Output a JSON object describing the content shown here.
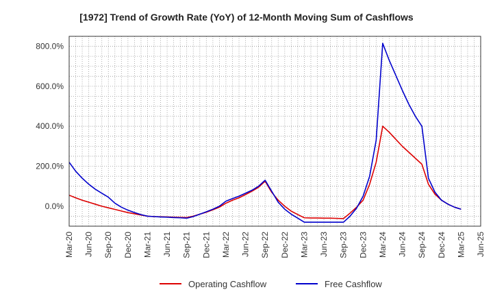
{
  "chart_data": {
    "type": "line",
    "title": "[1972]  Trend of Growth Rate (YoY) of 12-Month Moving Sum of Cashflows",
    "xlabel": "",
    "ylabel": "",
    "y_unit": "%",
    "ylim": [
      -100,
      850
    ],
    "yticks": [
      0,
      200,
      400,
      600,
      800
    ],
    "ytick_labels": [
      "0.0%",
      "200.0%",
      "400.0%",
      "600.0%",
      "800.0%"
    ],
    "xtick_labels": [
      "Mar-20",
      "Jun-20",
      "Sep-20",
      "Dec-20",
      "Mar-21",
      "Jun-21",
      "Sep-21",
      "Dec-21",
      "Mar-22",
      "Jun-22",
      "Sep-22",
      "Dec-22",
      "Mar-23",
      "Jun-23",
      "Sep-23",
      "Dec-23",
      "Mar-24",
      "Jun-24",
      "Sep-24",
      "Dec-24",
      "Mar-25",
      "Jun-25"
    ],
    "x_months": [
      "Mar-20",
      "Apr-20",
      "May-20",
      "Jun-20",
      "Jul-20",
      "Aug-20",
      "Sep-20",
      "Oct-20",
      "Nov-20",
      "Dec-20",
      "Jan-21",
      "Feb-21",
      "Mar-21",
      "Apr-21",
      "May-21",
      "Jun-21",
      "Jul-21",
      "Aug-21",
      "Sep-21",
      "Oct-21",
      "Nov-21",
      "Dec-21",
      "Jan-22",
      "Feb-22",
      "Mar-22",
      "Apr-22",
      "May-22",
      "Jun-22",
      "Jul-22",
      "Aug-22",
      "Sep-22",
      "Oct-22",
      "Nov-22",
      "Dec-22",
      "Jan-23",
      "Feb-23",
      "Mar-23",
      "Apr-23",
      "May-23",
      "Jun-23",
      "Jul-23",
      "Aug-23",
      "Sep-23",
      "Oct-23",
      "Nov-23",
      "Dec-23",
      "Jan-24",
      "Feb-24",
      "Mar-24",
      "Apr-24",
      "May-24",
      "Jun-24",
      "Jul-24",
      "Aug-24",
      "Sep-24",
      "Oct-24",
      "Nov-24",
      "Dec-24",
      "Jan-25",
      "Feb-25",
      "Mar-25"
    ],
    "grid": true,
    "legend_position": "bottom",
    "series": [
      {
        "name": "Operating Cashflow",
        "color": "#dd0000",
        "values": [
          55,
          42,
          30,
          20,
          10,
          0,
          -8,
          -16,
          -24,
          -32,
          -38,
          -44,
          -50,
          -52,
          -53,
          -54,
          -55,
          -56,
          -57,
          -50,
          -40,
          -30,
          -18,
          -5,
          15,
          30,
          42,
          58,
          75,
          95,
          125,
          70,
          30,
          0,
          -25,
          -42,
          -58,
          -59,
          -59,
          -60,
          -60,
          -61,
          -62,
          -35,
          -5,
          30,
          110,
          220,
          400,
          370,
          335,
          300,
          270,
          240,
          210,
          110,
          60,
          30,
          10,
          -5,
          -15
        ]
      },
      {
        "name": "Free Cashflow",
        "color": "#0000cc",
        "values": [
          220,
          175,
          140,
          110,
          85,
          65,
          45,
          15,
          -5,
          -20,
          -32,
          -42,
          -50,
          -52,
          -54,
          -55,
          -57,
          -58,
          -60,
          -52,
          -40,
          -28,
          -15,
          0,
          25,
          38,
          50,
          65,
          80,
          100,
          130,
          75,
          20,
          -15,
          -40,
          -60,
          -80,
          -80,
          -80,
          -80,
          -80,
          -80,
          -80,
          -50,
          -10,
          50,
          150,
          330,
          815,
          730,
          655,
          580,
          510,
          450,
          400,
          140,
          70,
          30,
          10,
          -5,
          -15
        ]
      }
    ]
  }
}
